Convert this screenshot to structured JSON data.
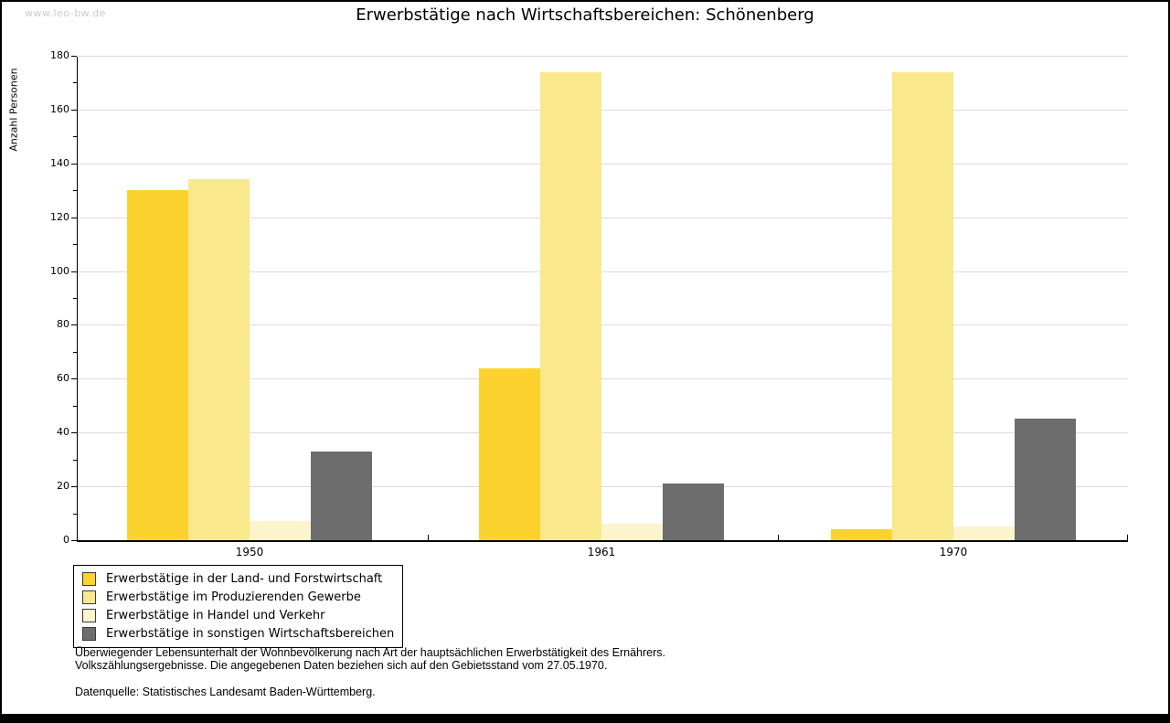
{
  "watermark": "www.leo-bw.de",
  "title": "Erwerbstätige nach Wirtschaftsbereichen: Schönenberg",
  "chart_data": {
    "type": "bar",
    "title": "Erwerbstätige nach Wirtschaftsbereichen: Schönenberg",
    "xlabel": "",
    "ylabel": "Anzahl Personen",
    "ylim": [
      0,
      180
    ],
    "ytick_step": 20,
    "yticks": [
      0,
      20,
      40,
      60,
      80,
      100,
      120,
      140,
      160,
      180
    ],
    "grid": true,
    "legend_position": "bottom-left",
    "categories": [
      "1950",
      "1961",
      "1970"
    ],
    "series": [
      {
        "name": "Erwerbstätige in der Land- und Forstwirtschaft",
        "color": "#fcd32e",
        "values": [
          130,
          64,
          4
        ]
      },
      {
        "name": "Erwerbstätige im Produzierenden Gewerbe",
        "color": "#fae88d",
        "values": [
          134,
          174,
          174
        ]
      },
      {
        "name": "Erwerbstätige in Handel und Verkehr",
        "color": "#fcf4cd",
        "values": [
          7,
          6,
          5
        ]
      },
      {
        "name": "Erwerbstätige in sonstigen Wirtschaftsbereichen",
        "color": "#6d6d6d",
        "values": [
          33,
          21,
          45
        ]
      }
    ]
  },
  "footer": {
    "note_line1": "Überwiegender Lebensunterhalt der Wohnbevölkerung nach Art der hauptsächlichen Erwerbstätigkeit des Ernährers.",
    "note_line2": "Volkszählungsergebnisse. Die angegebenen Daten beziehen sich auf den Gebietsstand vom 27.05.1970.",
    "source": "Datenquelle: Statistisches Landesamt Baden-Württemberg."
  }
}
